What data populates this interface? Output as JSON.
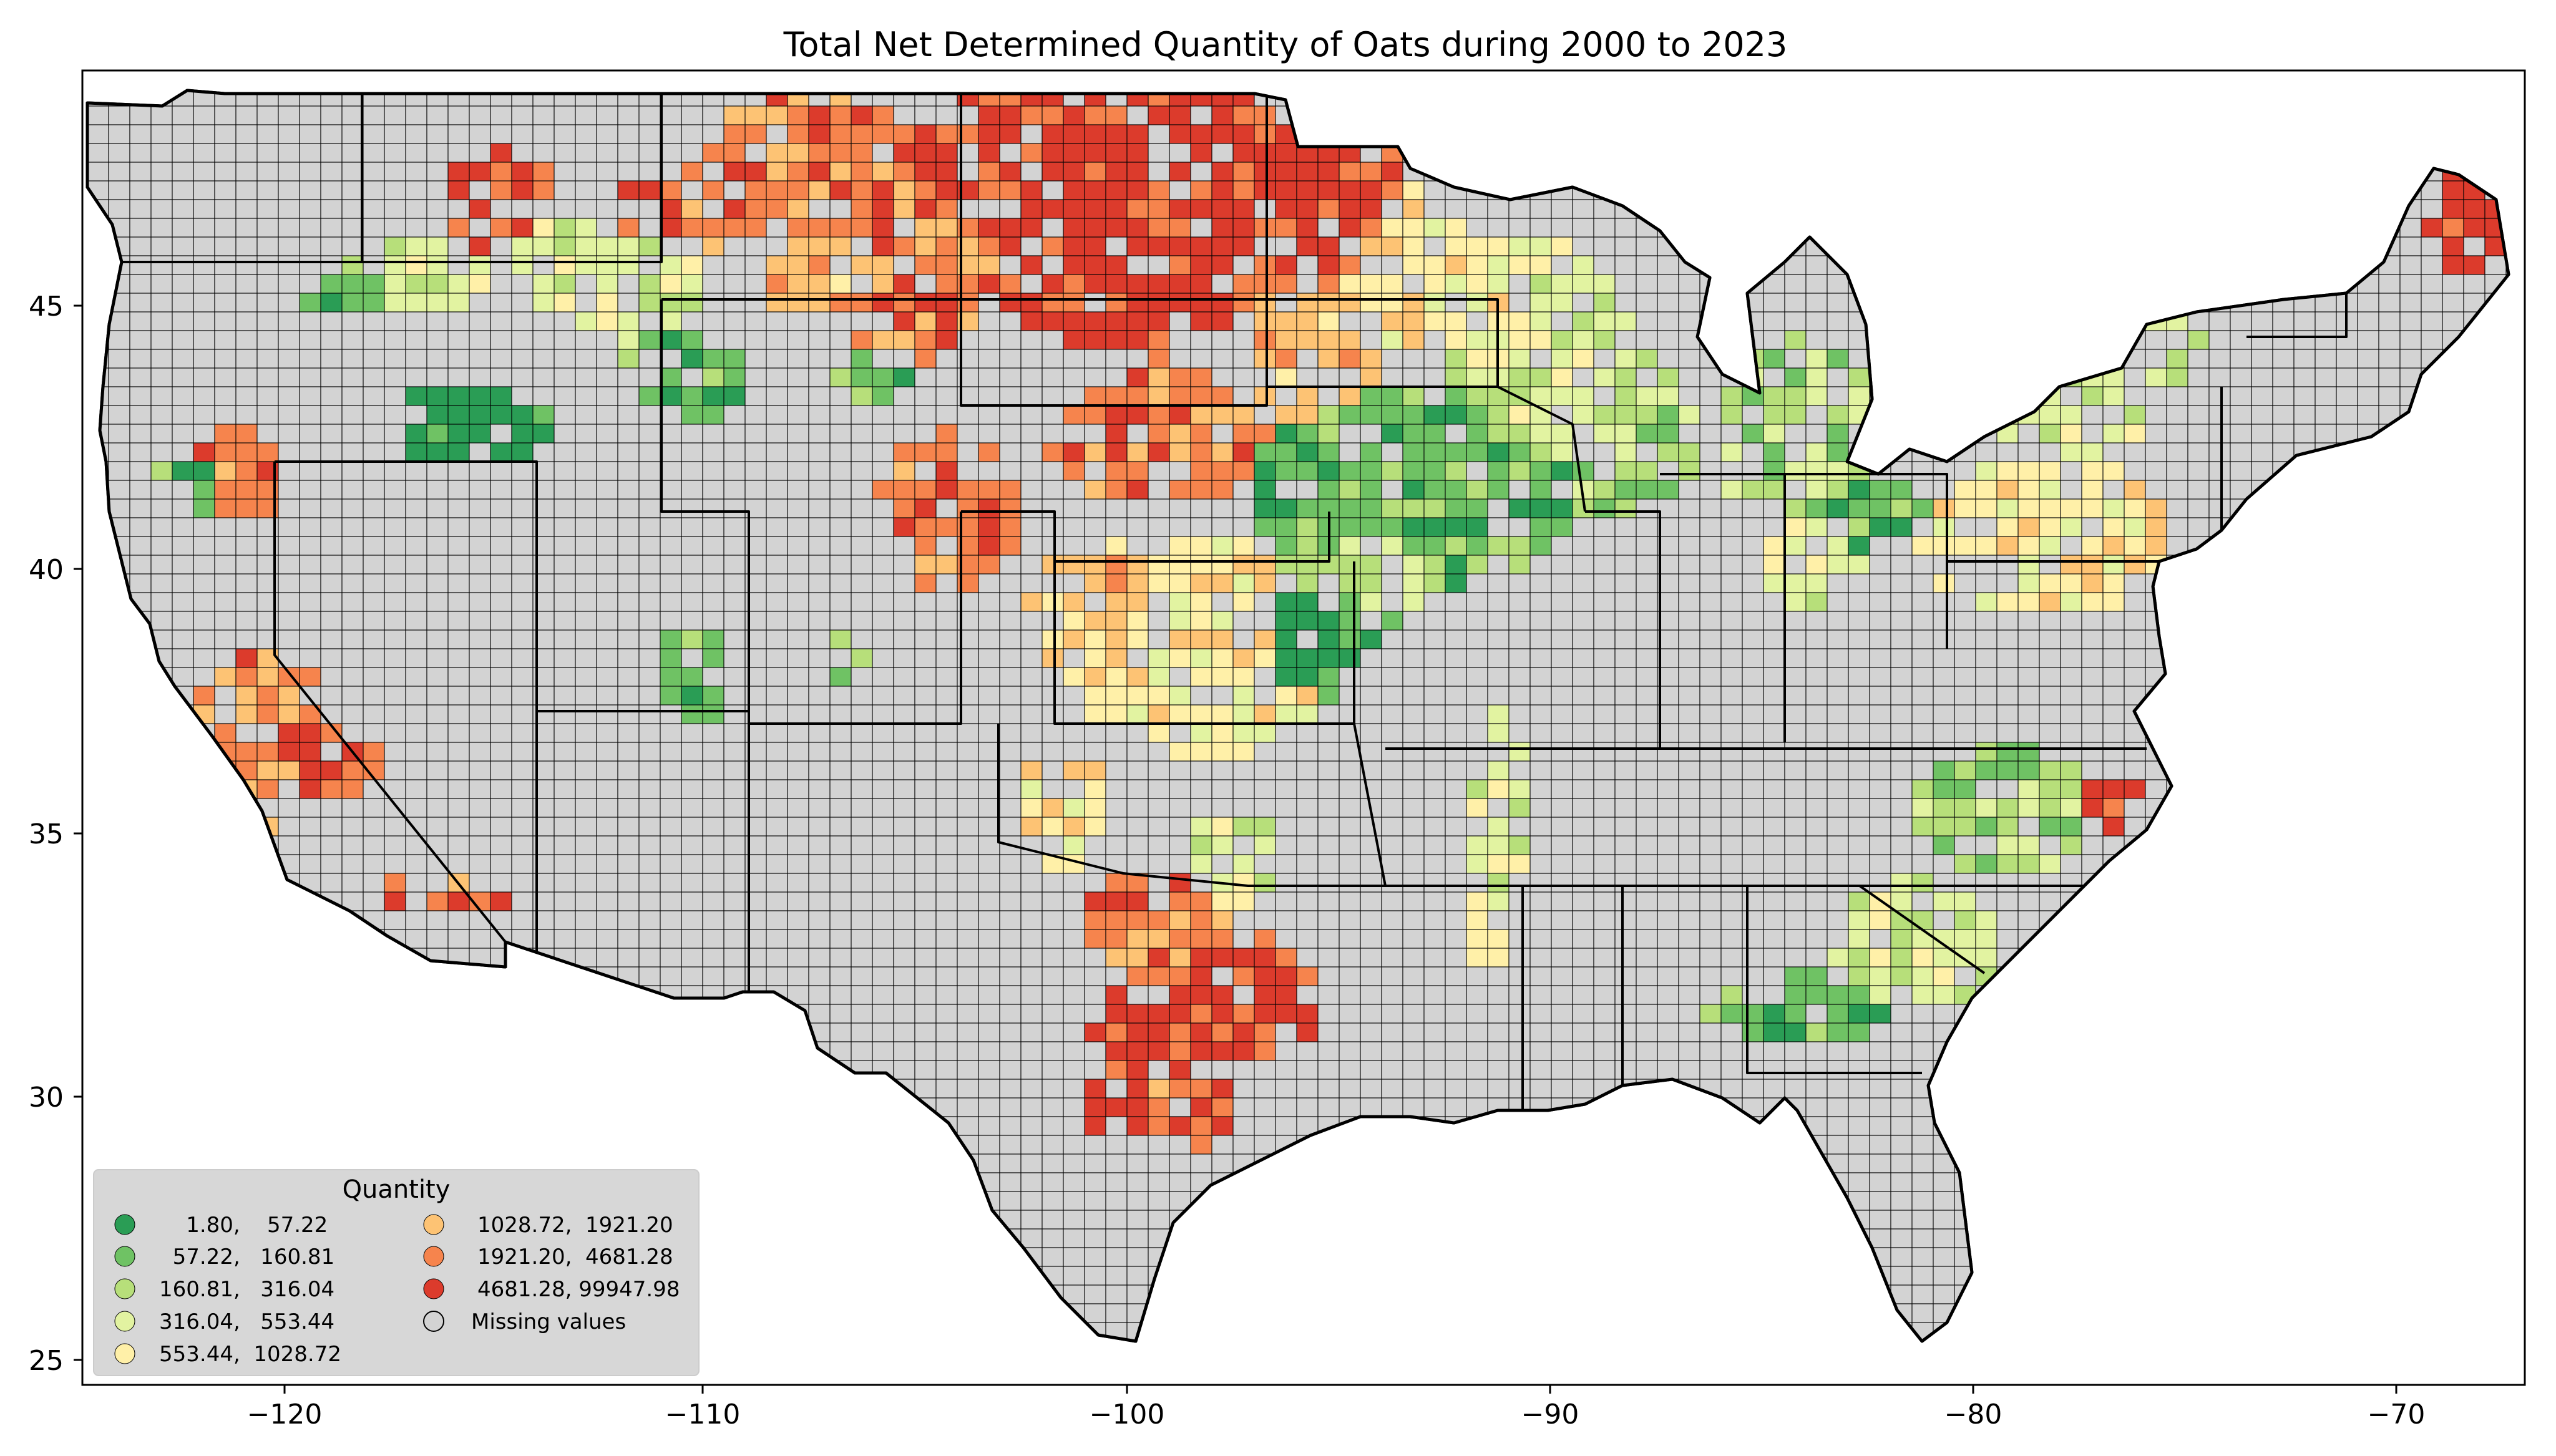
{
  "title": "Total Net Determined Quantity of Oats during 2000 to 2023",
  "x_ticks": [
    "−120",
    "−110",
    "−100",
    "−90",
    "−80",
    "−70"
  ],
  "y_ticks": [
    "45",
    "40",
    "35",
    "30",
    "25"
  ],
  "colors": {
    "missing_fill": "#d3d3d3",
    "boundary": "#000000",
    "class_1": "#2a9d55",
    "class_2": "#6fc264",
    "class_3": "#b7df7a",
    "class_4": "#e2f3a1",
    "class_5": "#fff0a8",
    "class_6": "#fdc374",
    "class_7": "#f6844d",
    "class_8": "#dc3b2c"
  },
  "legend": {
    "title": "Quantity",
    "items": [
      {
        "label": "    1.80,    57.22",
        "color": "#2a9d55"
      },
      {
        "label": "  57.22,   160.81",
        "color": "#6fc264"
      },
      {
        "label": "160.81,   316.04",
        "color": "#b7df7a"
      },
      {
        "label": "316.04,   553.44",
        "color": "#e2f3a1"
      },
      {
        "label": "553.44,  1028.72",
        "color": "#fff0a8"
      },
      {
        "label": "1028.72,  1921.20",
        "color": "#fdc374"
      },
      {
        "label": "1921.20,  4681.28",
        "color": "#f6844d"
      },
      {
        "label": "4681.28, 99947.98",
        "color": "#dc3b2c"
      },
      {
        "label": "Missing values",
        "color": "#d3d3d3"
      }
    ]
  }
}
